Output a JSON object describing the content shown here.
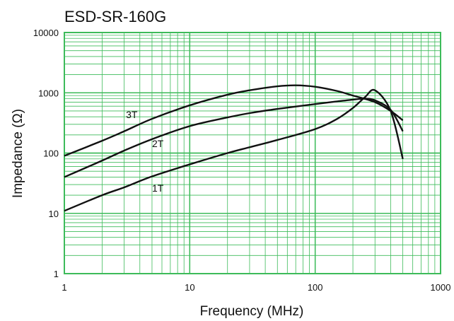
{
  "chart_data": {
    "type": "line",
    "title": "ESD-SR-160G",
    "xlabel": "Frequency (MHz)",
    "ylabel": "Impedance (Ω)",
    "xscale": "log",
    "yscale": "log",
    "xlim": [
      1,
      1000
    ],
    "ylim": [
      1,
      10000
    ],
    "grid": true,
    "legend": "none",
    "x_ticks": [
      "1",
      "10",
      "100",
      "1000"
    ],
    "y_ticks": [
      "1",
      "10",
      "100",
      "1000",
      "10000"
    ],
    "grid_color": "#3dbb5a",
    "line_color": "#111111",
    "series": [
      {
        "name": "3T",
        "x": [
          1,
          2,
          3,
          5,
          10,
          20,
          30,
          50,
          70,
          100,
          150,
          200,
          300,
          400,
          500
        ],
        "y": [
          90,
          160,
          230,
          370,
          620,
          930,
          1100,
          1280,
          1330,
          1260,
          1070,
          900,
          700,
          500,
          350
        ]
      },
      {
        "name": "2T",
        "x": [
          1,
          2,
          3,
          5,
          10,
          20,
          30,
          50,
          100,
          150,
          200,
          250,
          300,
          400,
          500
        ],
        "y": [
          40,
          75,
          110,
          170,
          280,
          390,
          460,
          540,
          650,
          720,
          770,
          800,
          750,
          520,
          230
        ]
      },
      {
        "name": "1T",
        "x": [
          1,
          2,
          3,
          5,
          10,
          20,
          30,
          50,
          100,
          150,
          200,
          250,
          300,
          400,
          500
        ],
        "y": [
          11,
          20,
          27,
          41,
          65,
          100,
          125,
          165,
          250,
          370,
          560,
          850,
          1100,
          500,
          80
        ]
      }
    ],
    "annotations": [
      {
        "text": "3T",
        "x": 3.1,
        "y": 380
      },
      {
        "text": "2T",
        "x": 5.0,
        "y": 125
      },
      {
        "text": "1T",
        "x": 5.0,
        "y": 23
      }
    ]
  }
}
